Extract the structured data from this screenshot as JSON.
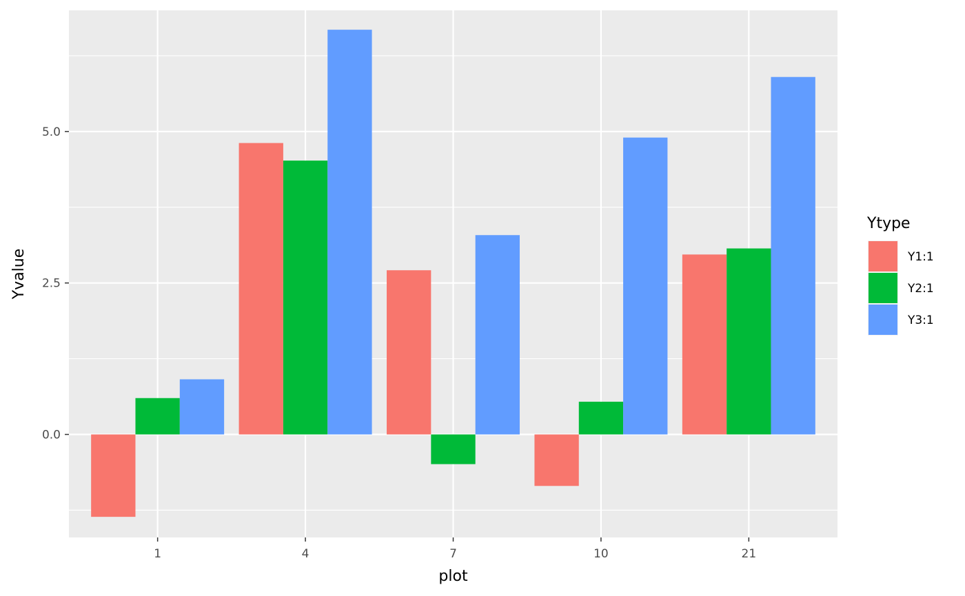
{
  "chart_data": {
    "type": "bar",
    "title": "",
    "xlabel": "plot",
    "ylabel": "Yvalue",
    "categories": [
      "1",
      "4",
      "7",
      "10",
      "21"
    ],
    "series": [
      {
        "name": "Y1:1",
        "color": "#F8766D",
        "values": [
          -1.36,
          4.81,
          2.71,
          -0.85,
          2.97
        ]
      },
      {
        "name": "Y2:1",
        "color": "#00BA38",
        "values": [
          0.6,
          4.52,
          -0.49,
          0.54,
          3.07
        ]
      },
      {
        "name": "Y3:1",
        "color": "#619CFF",
        "values": [
          0.91,
          6.68,
          3.29,
          4.9,
          5.9
        ]
      }
    ],
    "ylim": [
      -1.7,
      7.0
    ],
    "yticks": [
      0.0,
      2.5,
      5.0
    ],
    "ytick_labels": [
      "0.0",
      "2.5",
      "5.0"
    ],
    "legend": {
      "title": "Ytype",
      "position": "right"
    },
    "grid": true,
    "panel_background": "#EBEBEB",
    "grid_color": "#FFFFFF"
  }
}
